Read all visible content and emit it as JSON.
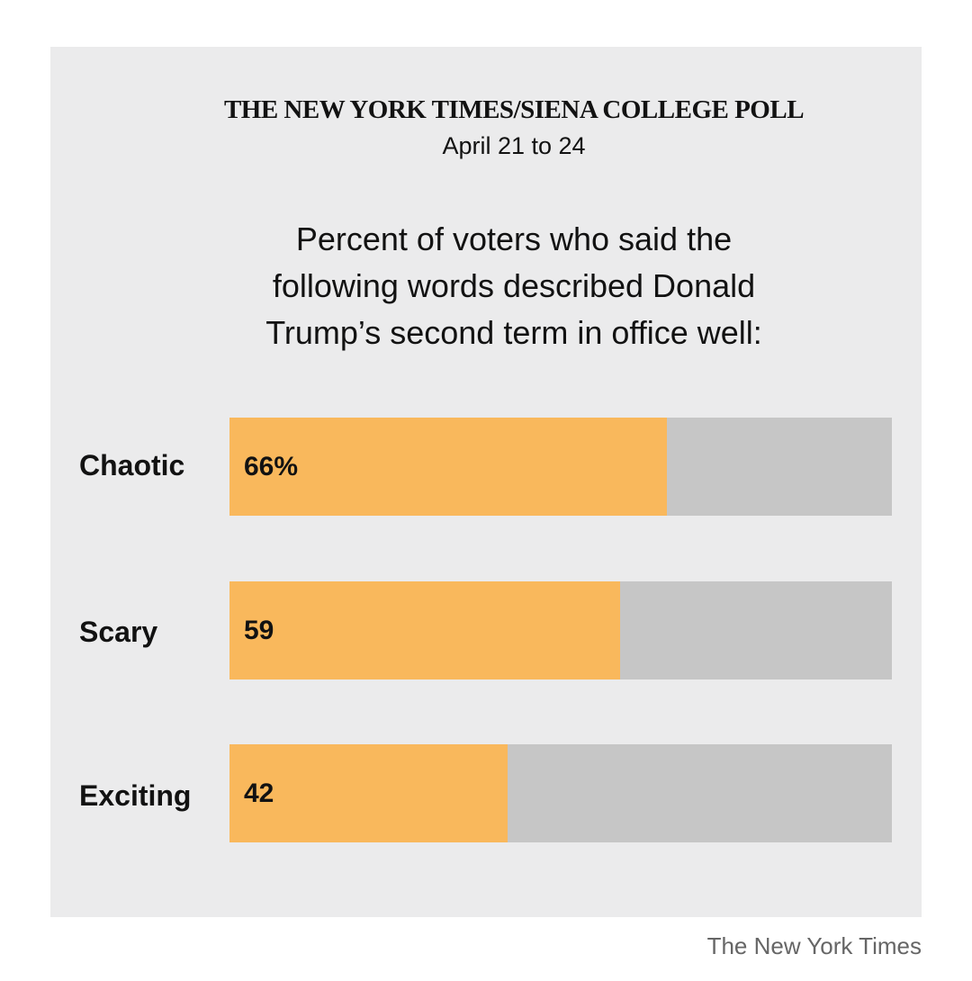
{
  "header": {
    "poll_title": "THE NEW YORK TIMES/SIENA COLLEGE POLL",
    "poll_dates": "April 21 to 24"
  },
  "question_lines": [
    "Percent of voters who said the",
    "following words described Donald",
    "Trump’s second term in office well:"
  ],
  "chart_data": {
    "type": "bar",
    "orientation": "horizontal",
    "categories": [
      "Chaotic",
      "Scary",
      "Exciting"
    ],
    "values": [
      66,
      59,
      42
    ],
    "value_labels": [
      "66%",
      "59",
      "42"
    ],
    "xlim": [
      0,
      100
    ],
    "unit": "percent",
    "colors": {
      "fill": "#f9b85c",
      "track": "#c6c6c6",
      "background": "#ebebec"
    }
  },
  "footer": {
    "credit": "The New York Times"
  }
}
